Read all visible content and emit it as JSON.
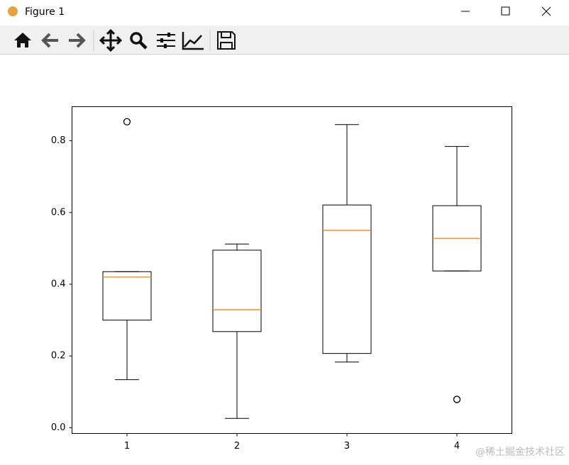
{
  "window": {
    "title": "Figure 1"
  },
  "watermark": "@稀土掘金技术社区",
  "chart_data": {
    "type": "boxplot",
    "categories": [
      "1",
      "2",
      "3",
      "4"
    ],
    "boxes": [
      {
        "whislo": 0.134,
        "q1": 0.3,
        "med": 0.42,
        "q3": 0.435,
        "whishi": 0.435,
        "fliers": [
          0.853
        ]
      },
      {
        "whislo": 0.026,
        "q1": 0.268,
        "med": 0.329,
        "q3": 0.495,
        "whishi": 0.512,
        "fliers": []
      },
      {
        "whislo": 0.183,
        "q1": 0.207,
        "med": 0.55,
        "q3": 0.621,
        "whishi": 0.845,
        "fliers": []
      },
      {
        "whislo": 0.437,
        "q1": 0.437,
        "med": 0.528,
        "q3": 0.619,
        "whishi": 0.784,
        "fliers": [
          0.079
        ]
      }
    ],
    "box_color": "#000000",
    "median_color": "#ff7f0e",
    "xlim": [
      0.5,
      4.5
    ],
    "ylim": [
      -0.016,
      0.895
    ],
    "yticks": [
      {
        "value": 0,
        "label": "0.0"
      },
      0.2,
      0.4,
      0.6,
      0.8
    ],
    "grid": false
  }
}
